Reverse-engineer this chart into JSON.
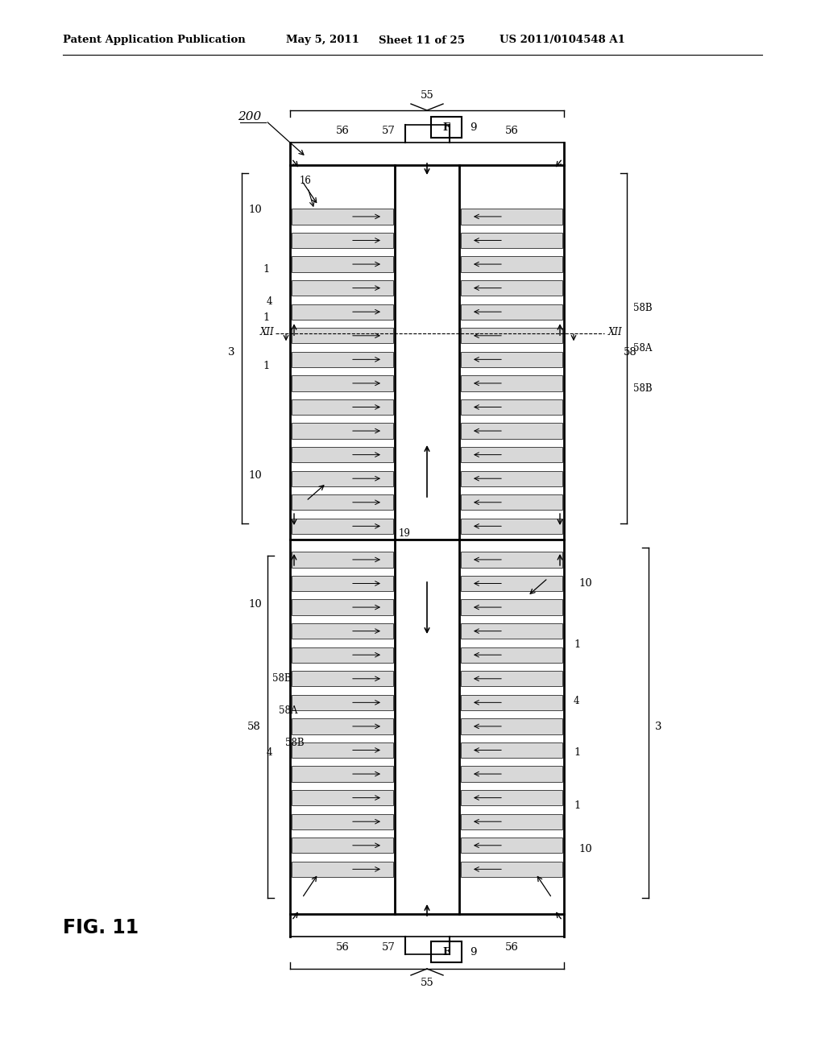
{
  "bg_color": "#ffffff",
  "line_color": "#000000",
  "header_text": "Patent Application Publication",
  "header_date": "May 5, 2011",
  "header_sheet": "Sheet 11 of 25",
  "header_patent": "US 2011/0104548 A1",
  "fig_label": "FIG. 11",
  "n_upper": 14,
  "n_lower": 14,
  "stripe_color": "#d8d8d8"
}
